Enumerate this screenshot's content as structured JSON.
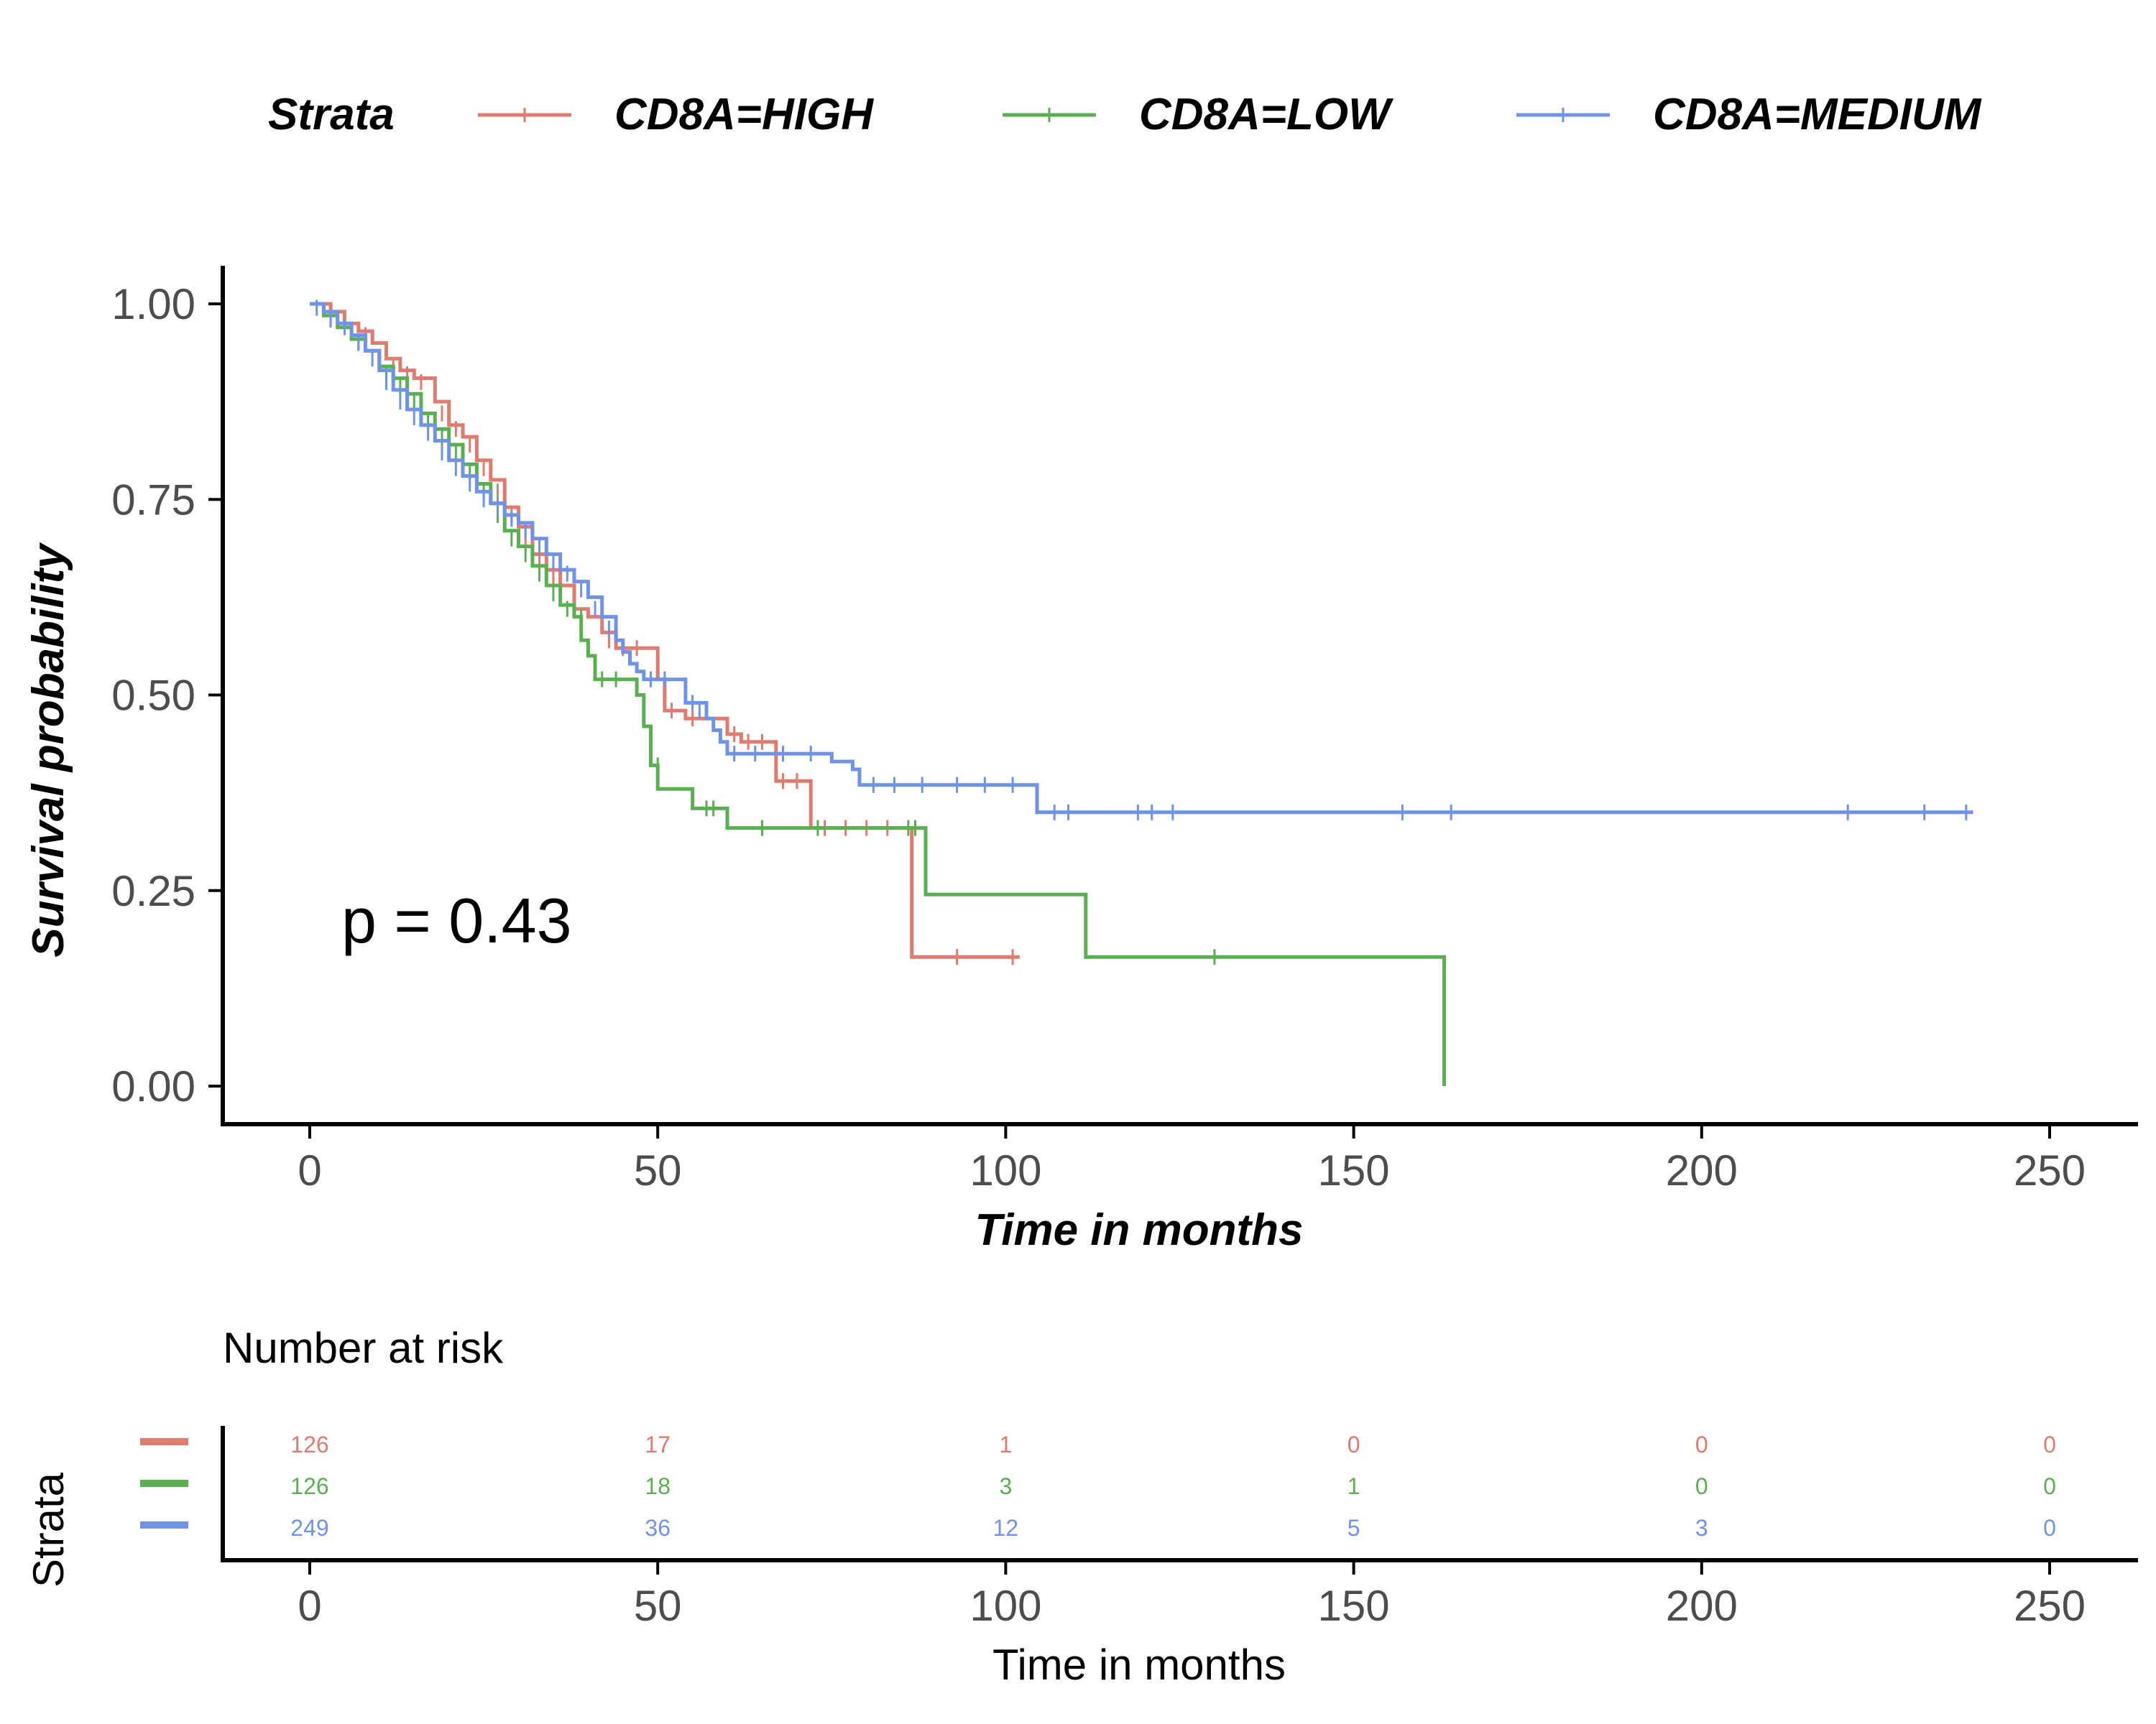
{
  "chart_data": {
    "type": "line",
    "subtype": "kaplan-meier",
    "legend": {
      "title": "Strata",
      "position": "top",
      "entries": [
        "CD8A=HIGH",
        "CD8A=LOW",
        "CD8A=MEDIUM"
      ]
    },
    "xlabel": "Time in months",
    "ylabel": "Survival probability",
    "xlim": [
      0,
      250
    ],
    "ylim": [
      0,
      1
    ],
    "x_ticks": [
      0,
      50,
      100,
      150,
      200,
      250
    ],
    "y_ticks": [
      "0.00",
      "0.25",
      "0.50",
      "0.75",
      "1.00"
    ],
    "annotation": "p = 0.43",
    "grid": false,
    "series": [
      {
        "name": "CD8A=HIGH",
        "color": "#E07B6F",
        "steps": [
          [
            0,
            1.0
          ],
          [
            3,
            0.99
          ],
          [
            5,
            0.975
          ],
          [
            7,
            0.965
          ],
          [
            9,
            0.95
          ],
          [
            11,
            0.93
          ],
          [
            13,
            0.915
          ],
          [
            15,
            0.905
          ],
          [
            18,
            0.875
          ],
          [
            20,
            0.845
          ],
          [
            22,
            0.83
          ],
          [
            24,
            0.8
          ],
          [
            26,
            0.775
          ],
          [
            28,
            0.74
          ],
          [
            30,
            0.715
          ],
          [
            32,
            0.68
          ],
          [
            34,
            0.66
          ],
          [
            36,
            0.64
          ],
          [
            38,
            0.61
          ],
          [
            40,
            0.6
          ],
          [
            42,
            0.58
          ],
          [
            44,
            0.56
          ],
          [
            49,
            0.56
          ],
          [
            50,
            0.52
          ],
          [
            51,
            0.48
          ],
          [
            54,
            0.47
          ],
          [
            59,
            0.47
          ],
          [
            60,
            0.45
          ],
          [
            62,
            0.44
          ],
          [
            66,
            0.44
          ],
          [
            67,
            0.39
          ],
          [
            71,
            0.39
          ],
          [
            72,
            0.33
          ],
          [
            86,
            0.33
          ],
          [
            86.5,
            0.165
          ],
          [
            102,
            0.165
          ]
        ],
        "censors": [
          [
            5,
            0.98
          ],
          [
            8,
            0.96
          ],
          [
            12,
            0.92
          ],
          [
            14,
            0.91
          ],
          [
            16,
            0.9
          ],
          [
            19,
            0.86
          ],
          [
            21,
            0.84
          ],
          [
            23,
            0.82
          ],
          [
            25,
            0.79
          ],
          [
            27,
            0.76
          ],
          [
            29,
            0.73
          ],
          [
            31,
            0.7
          ],
          [
            33,
            0.67
          ],
          [
            35,
            0.65
          ],
          [
            39,
            0.6
          ],
          [
            43,
            0.57
          ],
          [
            45,
            0.56
          ],
          [
            47,
            0.56
          ],
          [
            52,
            0.48
          ],
          [
            55,
            0.47
          ],
          [
            60,
            0.46
          ],
          [
            61,
            0.45
          ],
          [
            63,
            0.44
          ],
          [
            65,
            0.44
          ],
          [
            68,
            0.39
          ],
          [
            70,
            0.39
          ],
          [
            74,
            0.33
          ],
          [
            77,
            0.33
          ],
          [
            80,
            0.33
          ],
          [
            83,
            0.33
          ],
          [
            93,
            0.165
          ],
          [
            101,
            0.165
          ]
        ]
      },
      {
        "name": "CD8A=LOW",
        "color": "#5AB050",
        "steps": [
          [
            0,
            1.0
          ],
          [
            2,
            0.985
          ],
          [
            4,
            0.97
          ],
          [
            6,
            0.955
          ],
          [
            8,
            0.94
          ],
          [
            10,
            0.92
          ],
          [
            12,
            0.905
          ],
          [
            14,
            0.885
          ],
          [
            16,
            0.86
          ],
          [
            18,
            0.84
          ],
          [
            20,
            0.82
          ],
          [
            22,
            0.795
          ],
          [
            24,
            0.77
          ],
          [
            26,
            0.745
          ],
          [
            28,
            0.71
          ],
          [
            30,
            0.69
          ],
          [
            32,
            0.665
          ],
          [
            34,
            0.64
          ],
          [
            36,
            0.615
          ],
          [
            38,
            0.6
          ],
          [
            39,
            0.57
          ],
          [
            40,
            0.55
          ],
          [
            41,
            0.52
          ],
          [
            45,
            0.52
          ],
          [
            47,
            0.5
          ],
          [
            48,
            0.46
          ],
          [
            49,
            0.41
          ],
          [
            50,
            0.38
          ],
          [
            54,
            0.38
          ],
          [
            55,
            0.355
          ],
          [
            59,
            0.355
          ],
          [
            60,
            0.33
          ],
          [
            88,
            0.33
          ],
          [
            88.5,
            0.245
          ],
          [
            111,
            0.245
          ],
          [
            111.5,
            0.165
          ],
          [
            163,
            0.165
          ],
          [
            163,
            0.0
          ]
        ],
        "censors": [
          [
            3,
            0.98
          ],
          [
            7,
            0.95
          ],
          [
            11,
            0.91
          ],
          [
            13,
            0.895
          ],
          [
            15,
            0.875
          ],
          [
            17,
            0.85
          ],
          [
            19,
            0.83
          ],
          [
            21,
            0.81
          ],
          [
            23,
            0.785
          ],
          [
            25,
            0.76
          ],
          [
            27,
            0.73
          ],
          [
            29,
            0.7
          ],
          [
            31,
            0.68
          ],
          [
            33,
            0.655
          ],
          [
            35,
            0.63
          ],
          [
            37,
            0.61
          ],
          [
            39,
            0.6
          ],
          [
            42,
            0.52
          ],
          [
            44,
            0.52
          ],
          [
            50,
            0.41
          ],
          [
            57,
            0.355
          ],
          [
            58,
            0.355
          ],
          [
            65,
            0.33
          ],
          [
            73,
            0.33
          ],
          [
            86,
            0.33
          ],
          [
            87,
            0.33
          ],
          [
            130,
            0.165
          ]
        ]
      },
      {
        "name": "CD8A=MEDIUM",
        "color": "#6F93E6",
        "steps": [
          [
            0,
            1.0
          ],
          [
            2,
            0.99
          ],
          [
            4,
            0.975
          ],
          [
            6,
            0.96
          ],
          [
            8,
            0.94
          ],
          [
            10,
            0.915
          ],
          [
            12,
            0.89
          ],
          [
            14,
            0.865
          ],
          [
            16,
            0.845
          ],
          [
            18,
            0.825
          ],
          [
            20,
            0.8
          ],
          [
            22,
            0.78
          ],
          [
            24,
            0.76
          ],
          [
            26,
            0.745
          ],
          [
            28,
            0.73
          ],
          [
            30,
            0.72
          ],
          [
            32,
            0.7
          ],
          [
            34,
            0.68
          ],
          [
            36,
            0.66
          ],
          [
            38,
            0.645
          ],
          [
            40,
            0.625
          ],
          [
            42,
            0.6
          ],
          [
            44,
            0.57
          ],
          [
            45,
            0.555
          ],
          [
            46,
            0.54
          ],
          [
            47,
            0.53
          ],
          [
            48,
            0.52
          ],
          [
            53,
            0.52
          ],
          [
            54,
            0.49
          ],
          [
            57,
            0.47
          ],
          [
            58,
            0.455
          ],
          [
            59,
            0.44
          ],
          [
            60,
            0.425
          ],
          [
            74,
            0.425
          ],
          [
            75,
            0.415
          ],
          [
            78,
            0.405
          ],
          [
            79,
            0.385
          ],
          [
            104,
            0.385
          ],
          [
            104.5,
            0.35
          ],
          [
            239,
            0.35
          ]
        ],
        "censors": [
          [
            1,
            0.995
          ],
          [
            3,
            0.98
          ],
          [
            5,
            0.97
          ],
          [
            7,
            0.95
          ],
          [
            9,
            0.93
          ],
          [
            11,
            0.9
          ],
          [
            13,
            0.875
          ],
          [
            15,
            0.855
          ],
          [
            17,
            0.835
          ],
          [
            19,
            0.81
          ],
          [
            21,
            0.79
          ],
          [
            23,
            0.77
          ],
          [
            25,
            0.75
          ],
          [
            27,
            0.74
          ],
          [
            29,
            0.725
          ],
          [
            31,
            0.71
          ],
          [
            33,
            0.69
          ],
          [
            35,
            0.67
          ],
          [
            37,
            0.655
          ],
          [
            39,
            0.635
          ],
          [
            41,
            0.61
          ],
          [
            43,
            0.585
          ],
          [
            49,
            0.52
          ],
          [
            51,
            0.52
          ],
          [
            55,
            0.49
          ],
          [
            56,
            0.48
          ],
          [
            61,
            0.425
          ],
          [
            64,
            0.425
          ],
          [
            68,
            0.425
          ],
          [
            72,
            0.425
          ],
          [
            81,
            0.385
          ],
          [
            84,
            0.385
          ],
          [
            88,
            0.385
          ],
          [
            93,
            0.385
          ],
          [
            97,
            0.385
          ],
          [
            101,
            0.385
          ],
          [
            107,
            0.35
          ],
          [
            109,
            0.35
          ],
          [
            119,
            0.35
          ],
          [
            121,
            0.35
          ],
          [
            124,
            0.35
          ],
          [
            157,
            0.35
          ],
          [
            164,
            0.35
          ],
          [
            221,
            0.35
          ],
          [
            232,
            0.35
          ],
          [
            238,
            0.35
          ]
        ]
      }
    ]
  },
  "risk_table": {
    "title": "Number at risk",
    "ylabel": "Strata",
    "xlabel": "Time in months",
    "times": [
      0,
      50,
      100,
      150,
      200,
      250
    ],
    "rows": [
      {
        "name": "CD8A=HIGH",
        "color": "#E07B6F",
        "values": [
          126,
          17,
          1,
          0,
          0,
          0
        ]
      },
      {
        "name": "CD8A=LOW",
        "color": "#5AB050",
        "values": [
          126,
          18,
          3,
          1,
          0,
          0
        ]
      },
      {
        "name": "CD8A=MEDIUM",
        "color": "#6F93E6",
        "values": [
          249,
          36,
          12,
          5,
          3,
          0
        ]
      }
    ]
  }
}
